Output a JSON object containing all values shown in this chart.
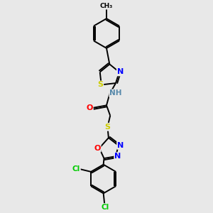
{
  "bg_color": "#e8e8e8",
  "atom_colors": {
    "C": "#000000",
    "N": "#0000ff",
    "O": "#ff0000",
    "S": "#cccc00",
    "Cl": "#00cc00",
    "H": "#5588aa",
    "NH": "#5588aa"
  },
  "bond_color": "#000000",
  "bond_width": 1.4,
  "figsize": [
    3.0,
    3.0
  ],
  "dpi": 100
}
